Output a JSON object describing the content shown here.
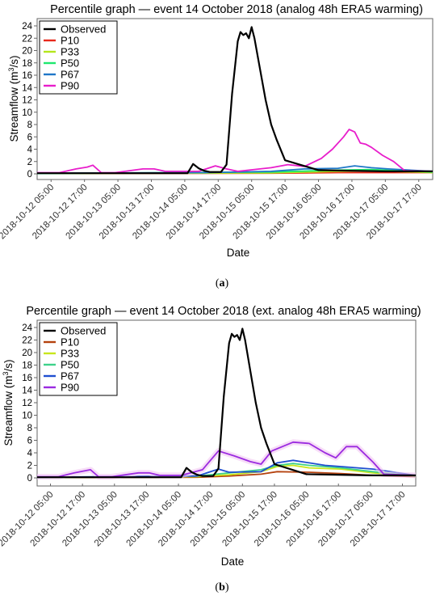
{
  "chart_data": [
    {
      "type": "line",
      "title": "Percentile graph — event 14 October 2018 (analog 48h ERA5 warming)",
      "xlabel": "Date",
      "ylabel": "Streamflow (m³/s)",
      "ylabel_main": "Streamflow (m",
      "ylabel_sup": "3",
      "ylabel_end": "/s)",
      "panel_label": "(a)",
      "panel_label_open": "(",
      "panel_label_letter": "a",
      "panel_label_close": ")",
      "ylim": [
        0,
        25
      ],
      "xlim": [
        "2018-10-12 00:00",
        "2018-10-17 22:00"
      ],
      "yticks": [
        "0",
        "2",
        "4",
        "6",
        "8",
        "10",
        "12",
        "14",
        "16",
        "18",
        "20",
        "22",
        "24"
      ],
      "xticks": [
        "2018-10-12 05:00",
        "2018-10-12 17:00",
        "2018-10-13 05:00",
        "2018-10-13 17:00",
        "2018-10-14 05:00",
        "2018-10-14 17:00",
        "2018-10-15 05:00",
        "2018-10-15 17:00",
        "2018-10-16 05:00",
        "2018-10-16 17:00",
        "2018-10-17 05:00",
        "2018-10-17 17:00"
      ],
      "legend_position": "top-left",
      "grid": false,
      "series": [
        {
          "name": "Observed",
          "color": "#000000",
          "x": [
            "2018-10-12 00:00",
            "2018-10-14 06:00",
            "2018-10-14 08:00",
            "2018-10-14 10:00",
            "2018-10-14 12:00",
            "2018-10-14 14:00",
            "2018-10-14 18:00",
            "2018-10-14 20:00",
            "2018-10-14 22:00",
            "2018-10-15 00:00",
            "2018-10-15 01:00",
            "2018-10-15 02:00",
            "2018-10-15 03:00",
            "2018-10-15 04:00",
            "2018-10-15 05:00",
            "2018-10-15 06:00",
            "2018-10-15 08:00",
            "2018-10-15 10:00",
            "2018-10-15 12:00",
            "2018-10-15 14:00",
            "2018-10-15 17:00",
            "2018-10-16 05:00",
            "2018-10-16 17:00",
            "2018-10-17 05:00",
            "2018-10-17 22:00"
          ],
          "y": [
            0.1,
            0.1,
            1.6,
            0.9,
            0.5,
            0.3,
            0.3,
            1.5,
            13,
            21.5,
            23,
            22.5,
            22.8,
            22,
            23.8,
            22,
            17,
            12,
            8,
            5.5,
            2.2,
            0.6,
            0.5,
            0.4,
            0.4
          ]
        },
        {
          "name": "P10",
          "color": "#e8291c",
          "x": [
            "2018-10-12 00:00",
            "2018-10-15 12:00",
            "2018-10-16 12:00",
            "2018-10-17 22:00"
          ],
          "y": [
            0.05,
            0.1,
            0.2,
            0.2
          ]
        },
        {
          "name": "P33",
          "color": "#b4e61c",
          "x": [
            "2018-10-12 00:00",
            "2018-10-15 12:00",
            "2018-10-16 12:00",
            "2018-10-17 00:00",
            "2018-10-17 22:00"
          ],
          "y": [
            0.05,
            0.15,
            0.4,
            0.5,
            0.2
          ]
        },
        {
          "name": "P50",
          "color": "#1ee86e",
          "x": [
            "2018-10-12 00:00",
            "2018-10-15 12:00",
            "2018-10-16 12:00",
            "2018-10-17 00:00",
            "2018-10-17 22:00"
          ],
          "y": [
            0.05,
            0.3,
            0.6,
            0.7,
            0.3
          ]
        },
        {
          "name": "P67",
          "color": "#1f77c8",
          "x": [
            "2018-10-12 00:00",
            "2018-10-14 12:00",
            "2018-10-15 12:00",
            "2018-10-16 00:00",
            "2018-10-16 12:00",
            "2018-10-16 18:00",
            "2018-10-17 00:00",
            "2018-10-17 06:00",
            "2018-10-17 22:00"
          ],
          "y": [
            0.1,
            0.2,
            0.4,
            0.8,
            0.9,
            1.3,
            1.0,
            0.8,
            0.4
          ]
        },
        {
          "name": "P90",
          "color": "#e81ecb",
          "x": [
            "2018-10-12 00:00",
            "2018-10-12 08:00",
            "2018-10-12 14:00",
            "2018-10-12 18:00",
            "2018-10-12 20:00",
            "2018-10-12 23:00",
            "2018-10-13 04:00",
            "2018-10-13 14:00",
            "2018-10-13 18:00",
            "2018-10-13 22:00",
            "2018-10-14 06:00",
            "2018-10-14 10:00",
            "2018-10-14 16:00",
            "2018-10-14 20:00",
            "2018-10-15 00:00",
            "2018-10-15 12:00",
            "2018-10-15 18:00",
            "2018-10-16 00:00",
            "2018-10-16 06:00",
            "2018-10-16 10:00",
            "2018-10-16 14:00",
            "2018-10-16 16:00",
            "2018-10-16 18:00",
            "2018-10-16 20:00",
            "2018-10-16 22:00",
            "2018-10-17 00:00",
            "2018-10-17 04:00",
            "2018-10-17 08:00",
            "2018-10-17 12:00",
            "2018-10-17 22:00"
          ],
          "y": [
            0.2,
            0.2,
            0.8,
            1.1,
            1.4,
            0.2,
            0.2,
            0.8,
            0.8,
            0.4,
            0.4,
            0.4,
            1.3,
            0.8,
            0.4,
            1.0,
            1.5,
            1.2,
            2.5,
            4,
            6,
            7.2,
            6.8,
            5,
            4.8,
            4.3,
            3,
            2,
            0.5,
            0.4
          ]
        }
      ]
    },
    {
      "type": "line",
      "title": "Percentile graph — event 14 October 2018 (ext. analog 48h ERA5 warming)",
      "xlabel": "Date",
      "ylabel": "Streamflow (m³/s)",
      "ylabel_main": "Streamflow (m",
      "ylabel_sup": "3",
      "ylabel_end": "/s)",
      "panel_label": "(b)",
      "panel_label_open": "(",
      "panel_label_letter": "b",
      "panel_label_close": ")",
      "ylim": [
        0,
        25
      ],
      "xlim": [
        "2018-10-12 00:00",
        "2018-10-17 22:00"
      ],
      "yticks": [
        "0",
        "2",
        "4",
        "6",
        "8",
        "10",
        "12",
        "14",
        "16",
        "18",
        "20",
        "22",
        "24"
      ],
      "xticks": [
        "2018-10-12 05:00",
        "2018-10-12 17:00",
        "2018-10-13 05:00",
        "2018-10-13 17:00",
        "2018-10-14 05:00",
        "2018-10-14 17:00",
        "2018-10-15 05:00",
        "2018-10-15 17:00",
        "2018-10-16 05:00",
        "2018-10-16 17:00",
        "2018-10-17 05:00",
        "2018-10-17 17:00"
      ],
      "legend_position": "top-left",
      "grid": false,
      "series": [
        {
          "name": "Observed",
          "color": "#000000",
          "x": [
            "2018-10-12 00:00",
            "2018-10-14 06:00",
            "2018-10-14 08:00",
            "2018-10-14 10:00",
            "2018-10-14 12:00",
            "2018-10-14 14:00",
            "2018-10-14 18:00",
            "2018-10-14 20:00",
            "2018-10-14 22:00",
            "2018-10-15 00:00",
            "2018-10-15 01:00",
            "2018-10-15 02:00",
            "2018-10-15 03:00",
            "2018-10-15 04:00",
            "2018-10-15 05:00",
            "2018-10-15 06:00",
            "2018-10-15 08:00",
            "2018-10-15 10:00",
            "2018-10-15 12:00",
            "2018-10-15 14:00",
            "2018-10-15 17:00",
            "2018-10-16 05:00",
            "2018-10-16 17:00",
            "2018-10-17 05:00",
            "2018-10-17 22:00"
          ],
          "y": [
            0.1,
            0.1,
            1.6,
            0.9,
            0.5,
            0.3,
            0.3,
            1.5,
            13,
            21.5,
            23,
            22.5,
            22.8,
            22,
            23.8,
            22,
            17,
            12,
            8,
            5.5,
            2.2,
            0.6,
            0.5,
            0.4,
            0.4
          ]
        },
        {
          "name": "P10",
          "color": "#b5420e",
          "x": [
            "2018-10-12 00:00",
            "2018-10-14 12:00",
            "2018-10-15 00:00",
            "2018-10-15 12:00",
            "2018-10-15 18:00",
            "2018-10-16 06:00",
            "2018-10-16 18:00",
            "2018-10-17 06:00",
            "2018-10-17 22:00"
          ],
          "y": [
            0.05,
            0.1,
            0.3,
            0.6,
            1.0,
            0.9,
            0.7,
            0.4,
            0.2
          ]
        },
        {
          "name": "P33",
          "color": "#c8e61c",
          "x": [
            "2018-10-12 00:00",
            "2018-10-14 12:00",
            "2018-10-15 00:00",
            "2018-10-15 12:00",
            "2018-10-15 18:00",
            "2018-10-16 00:00",
            "2018-10-16 06:00",
            "2018-10-16 18:00",
            "2018-10-17 06:00",
            "2018-10-17 22:00"
          ],
          "y": [
            0.05,
            0.2,
            0.5,
            1.0,
            1.8,
            2.0,
            1.6,
            1.4,
            0.8,
            0.3
          ]
        },
        {
          "name": "P50",
          "color": "#3ed28a",
          "x": [
            "2018-10-12 00:00",
            "2018-10-14 12:00",
            "2018-10-15 00:00",
            "2018-10-15 12:00",
            "2018-10-15 18:00",
            "2018-10-16 00:00",
            "2018-10-16 06:00",
            "2018-10-16 18:00",
            "2018-10-17 06:00",
            "2018-10-17 22:00"
          ],
          "y": [
            0.05,
            0.3,
            0.8,
            1.3,
            2.0,
            2.3,
            2.0,
            1.6,
            1.0,
            0.3
          ]
        },
        {
          "name": "P67",
          "color": "#1f4fd0",
          "x": [
            "2018-10-12 00:00",
            "2018-10-14 12:00",
            "2018-10-14 20:00",
            "2018-10-15 00:00",
            "2018-10-15 12:00",
            "2018-10-15 18:00",
            "2018-10-16 00:00",
            "2018-10-16 06:00",
            "2018-10-16 12:00",
            "2018-10-16 18:00",
            "2018-10-17 06:00",
            "2018-10-17 22:00"
          ],
          "y": [
            0.1,
            0.3,
            1.4,
            0.9,
            1.0,
            2.4,
            2.8,
            2.4,
            2.0,
            1.8,
            1.4,
            0.4
          ]
        },
        {
          "name": "P90",
          "color": "#9b2be0",
          "x": [
            "2018-10-12 00:00",
            "2018-10-12 08:00",
            "2018-10-12 14:00",
            "2018-10-12 20:00",
            "2018-10-12 23:00",
            "2018-10-13 04:00",
            "2018-10-13 14:00",
            "2018-10-13 18:00",
            "2018-10-13 22:00",
            "2018-10-14 06:00",
            "2018-10-14 14:00",
            "2018-10-14 20:00",
            "2018-10-15 02:00",
            "2018-10-15 08:00",
            "2018-10-15 12:00",
            "2018-10-15 16:00",
            "2018-10-16 00:00",
            "2018-10-16 06:00",
            "2018-10-16 12:00",
            "2018-10-16 16:00",
            "2018-10-16 20:00",
            "2018-10-17 00:00",
            "2018-10-17 06:00",
            "2018-10-17 10:00",
            "2018-10-17 22:00"
          ],
          "y": [
            0.2,
            0.2,
            0.8,
            1.3,
            0.2,
            0.2,
            0.8,
            0.8,
            0.4,
            0.4,
            1.3,
            4.3,
            3.5,
            2.6,
            2.2,
            4.3,
            5.7,
            5.5,
            4.0,
            3.2,
            5.0,
            5.0,
            2.5,
            0.6,
            0.4
          ]
        }
      ]
    }
  ]
}
